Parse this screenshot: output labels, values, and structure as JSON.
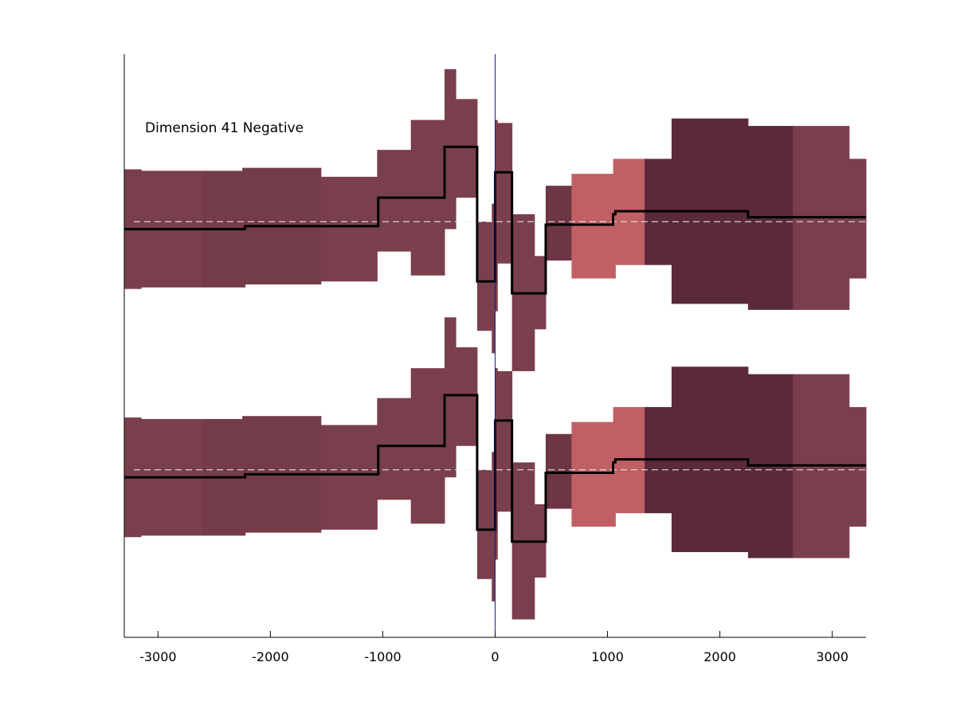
{
  "chart_data": {
    "type": "area",
    "annotation": "Dimension 41 Negative",
    "xlim": [
      -3300,
      3300
    ],
    "ylim": [
      -1.95,
      1.95
    ],
    "yticks_shown": false,
    "grid": false,
    "xticks": [
      -3000,
      -2000,
      -1000,
      0,
      1000,
      2000,
      3000
    ],
    "xtick_labels": [
      "-3000",
      "-2000",
      "-1000",
      "0",
      "1000",
      "2000",
      "3000"
    ],
    "vertical_line_x": 0,
    "panels": [
      {
        "baseline": 0.83
      },
      {
        "baseline": -0.83
      }
    ],
    "bins": [
      {
        "x0": -3300,
        "x1": -3150,
        "mean": -0.05,
        "upper": 0.35,
        "lower": -0.45,
        "color": "#7a3f4d"
      },
      {
        "x0": -3150,
        "x1": -2600,
        "mean": -0.05,
        "upper": 0.34,
        "lower": -0.44,
        "color": "#7a3f4d"
      },
      {
        "x0": -2600,
        "x1": -2250,
        "mean": -0.05,
        "upper": 0.34,
        "lower": -0.44,
        "color": "#743c49"
      },
      {
        "x0": -2250,
        "x1": -2225,
        "mean": -0.05,
        "upper": 0.36,
        "lower": -0.44,
        "color": "#743c49"
      },
      {
        "x0": -2225,
        "x1": -1550,
        "mean": -0.03,
        "upper": 0.36,
        "lower": -0.42,
        "color": "#743c49"
      },
      {
        "x0": -1550,
        "x1": -1050,
        "mean": -0.03,
        "upper": 0.3,
        "lower": -0.4,
        "color": "#7a3f4d"
      },
      {
        "x0": -1050,
        "x1": -1040,
        "mean": -0.03,
        "upper": 0.48,
        "lower": -0.2,
        "color": "#7a3f4d"
      },
      {
        "x0": -1040,
        "x1": -750,
        "mean": 0.16,
        "upper": 0.48,
        "lower": -0.2,
        "color": "#7a3f4d"
      },
      {
        "x0": -750,
        "x1": -450,
        "mean": 0.16,
        "upper": 0.68,
        "lower": -0.36,
        "color": "#7a3f4d"
      },
      {
        "x0": -450,
        "x1": -350,
        "mean": 0.5,
        "upper": 1.02,
        "lower": -0.05,
        "color": "#7a3f4d"
      },
      {
        "x0": -350,
        "x1": -160,
        "mean": 0.5,
        "upper": 0.82,
        "lower": 0.16,
        "color": "#7a3f4d"
      },
      {
        "x0": -160,
        "x1": -30,
        "mean": -0.4,
        "upper": 0.0,
        "lower": -0.73,
        "color": "#7a3f4d"
      },
      {
        "x0": -30,
        "x1": 0,
        "mean": -0.4,
        "upper": 0.12,
        "lower": -0.88,
        "color": "#7a3f4d"
      },
      {
        "x0": 0,
        "x1": 20,
        "mean": 0.33,
        "upper": 0.68,
        "lower": -0.6,
        "color": "#7a3f4d"
      },
      {
        "x0": 20,
        "x1": 150,
        "mean": 0.33,
        "upper": 0.66,
        "lower": -0.28,
        "color": "#7a3f4d"
      },
      {
        "x0": 150,
        "x1": 350,
        "mean": -0.48,
        "upper": 0.05,
        "lower": -1.0,
        "color": "#7a3f4d"
      },
      {
        "x0": 350,
        "x1": 450,
        "mean": -0.48,
        "upper": -0.23,
        "lower": -0.72,
        "color": "#7a3f4d"
      },
      {
        "x0": 450,
        "x1": 680,
        "mean": -0.02,
        "upper": 0.24,
        "lower": -0.26,
        "color": "#6e3545"
      },
      {
        "x0": 680,
        "x1": 1050,
        "mean": -0.02,
        "upper": 0.32,
        "lower": -0.38,
        "color": "#c06064"
      },
      {
        "x0": 1050,
        "x1": 1070,
        "mean": 0.05,
        "upper": 0.42,
        "lower": -0.38,
        "color": "#c06064"
      },
      {
        "x0": 1070,
        "x1": 1330,
        "mean": 0.07,
        "upper": 0.42,
        "lower": -0.29,
        "color": "#c06064"
      },
      {
        "x0": 1330,
        "x1": 1570,
        "mean": 0.07,
        "upper": 0.42,
        "lower": -0.29,
        "color": "#5a2a3c"
      },
      {
        "x0": 1570,
        "x1": 2230,
        "mean": 0.07,
        "upper": 0.69,
        "lower": -0.55,
        "color": "#5a2a3c"
      },
      {
        "x0": 2230,
        "x1": 2250,
        "mean": 0.07,
        "upper": 0.69,
        "lower": -0.55,
        "color": "#5a2a3c"
      },
      {
        "x0": 2250,
        "x1": 2650,
        "mean": 0.03,
        "upper": 0.64,
        "lower": -0.59,
        "color": "#5a2a3c"
      },
      {
        "x0": 2650,
        "x1": 3150,
        "mean": 0.03,
        "upper": 0.64,
        "lower": -0.59,
        "color": "#7a3f4d"
      },
      {
        "x0": 3150,
        "x1": 3300,
        "mean": 0.03,
        "upper": 0.42,
        "lower": -0.38,
        "color": "#7a3f4d"
      }
    ],
    "colors": {
      "mean_line": "#000000",
      "baseline_dash": "#f2f2f2",
      "vertical_line": "#1a1a8c",
      "axis": "#000000"
    }
  }
}
